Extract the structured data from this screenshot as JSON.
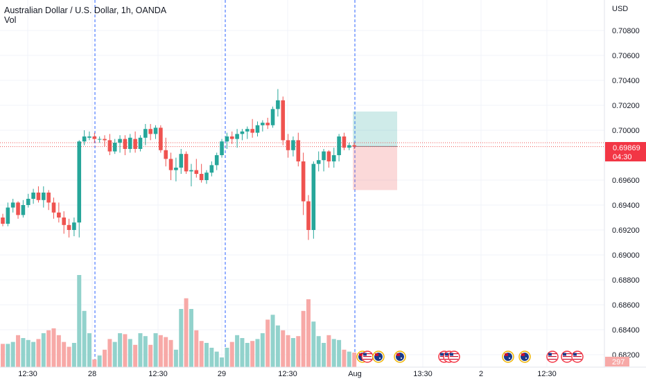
{
  "header": {
    "title": "Australian Dollar / U.S. Dollar, 1h, OANDA",
    "volume_label": "Vol"
  },
  "axis": {
    "currency": "USD",
    "price_ticks": [
      "0.70800",
      "0.70600",
      "0.70400",
      "0.70200",
      "0.70000",
      "0.69600",
      "0.69400",
      "0.69200",
      "0.69000",
      "0.68800",
      "0.68600",
      "0.68400",
      "0.68200"
    ],
    "time_ticks": [
      "12:30",
      "28",
      "12:30",
      "29",
      "12:30",
      "Aug",
      "13:30",
      "2",
      "12:30"
    ]
  },
  "price_label": {
    "value": "0.69869",
    "countdown": "04:30"
  },
  "volume_label_value": "297",
  "colors": {
    "up": "#26a69a",
    "down": "#ef5350",
    "up_vol": "#92d2cc",
    "down_vol": "#f7a9a7",
    "label_bg": "#f23645",
    "grid": "#f0f3fa",
    "divider": "#2962ff"
  },
  "chart_data": {
    "type": "candlestick",
    "ylim": [
      0.681,
      0.7095
    ],
    "candles": [
      [
        0.693,
        0.6933,
        0.6923,
        0.6925
      ],
      [
        0.6925,
        0.6942,
        0.6923,
        0.6938
      ],
      [
        0.6938,
        0.6945,
        0.6934,
        0.6942
      ],
      [
        0.6942,
        0.6943,
        0.6929,
        0.6932
      ],
      [
        0.6932,
        0.6944,
        0.693,
        0.694
      ],
      [
        0.694,
        0.6949,
        0.6938,
        0.6945
      ],
      [
        0.6945,
        0.6953,
        0.6941,
        0.695
      ],
      [
        0.695,
        0.6955,
        0.6942,
        0.6944
      ],
      [
        0.6944,
        0.6955,
        0.6938,
        0.695
      ],
      [
        0.695,
        0.6952,
        0.6936,
        0.6942
      ],
      [
        0.6942,
        0.6946,
        0.6929,
        0.6934
      ],
      [
        0.6934,
        0.6942,
        0.6926,
        0.693
      ],
      [
        0.693,
        0.6935,
        0.6917,
        0.6924
      ],
      [
        0.6924,
        0.6929,
        0.6914,
        0.692
      ],
      [
        0.692,
        0.693,
        0.6915,
        0.6926
      ],
      [
        0.6926,
        0.6992,
        0.6914,
        0.6991
      ],
      [
        0.6991,
        0.7,
        0.6988,
        0.6995
      ],
      [
        0.6994,
        0.6999,
        0.6992,
        0.6995
      ],
      [
        0.6995,
        0.6998,
        0.699,
        0.6993
      ],
      [
        0.6993,
        0.6995,
        0.699,
        0.6993
      ],
      [
        0.6993,
        0.6996,
        0.6987,
        0.6992
      ],
      [
        0.6992,
        0.6997,
        0.698,
        0.6983
      ],
      [
        0.6983,
        0.6993,
        0.6981,
        0.699
      ],
      [
        0.699,
        0.6996,
        0.6982,
        0.6993
      ],
      [
        0.6993,
        0.6996,
        0.698,
        0.6985
      ],
      [
        0.6985,
        0.6997,
        0.6982,
        0.6994
      ],
      [
        0.6993,
        0.6999,
        0.6982,
        0.6985
      ],
      [
        0.6985,
        0.6996,
        0.6983,
        0.6994
      ],
      [
        0.6994,
        0.7005,
        0.6988,
        0.7001
      ],
      [
        0.7001,
        0.7005,
        0.6992,
        0.6997
      ],
      [
        0.6997,
        0.7004,
        0.6993,
        0.7002
      ],
      [
        0.7002,
        0.7004,
        0.6982,
        0.6984
      ],
      [
        0.6984,
        0.6994,
        0.6971,
        0.6977
      ],
      [
        0.6977,
        0.6982,
        0.696,
        0.6968
      ],
      [
        0.6968,
        0.6978,
        0.6959,
        0.697
      ],
      [
        0.697,
        0.6985,
        0.6965,
        0.6981
      ],
      [
        0.6981,
        0.6983,
        0.6965,
        0.6967
      ],
      [
        0.6967,
        0.6973,
        0.6955,
        0.6968
      ],
      [
        0.6968,
        0.6977,
        0.6962,
        0.6965
      ],
      [
        0.6965,
        0.6973,
        0.6958,
        0.696
      ],
      [
        0.696,
        0.6968,
        0.6957,
        0.6966
      ],
      [
        0.6966,
        0.6975,
        0.6963,
        0.6972
      ],
      [
        0.6972,
        0.6982,
        0.6968,
        0.698
      ],
      [
        0.698,
        0.6993,
        0.6978,
        0.6991
      ],
      [
        0.6991,
        0.6998,
        0.6985,
        0.6995
      ],
      [
        0.6995,
        0.6999,
        0.6989,
        0.6993
      ],
      [
        0.6993,
        0.7001,
        0.6986,
        0.6997
      ],
      [
        0.6997,
        0.7001,
        0.6992,
        0.6999
      ],
      [
        0.6999,
        0.7003,
        0.6993,
        0.7001
      ],
      [
        0.7001,
        0.7009,
        0.6994,
        0.6998
      ],
      [
        0.6998,
        0.7007,
        0.6995,
        0.7004
      ],
      [
        0.7004,
        0.7008,
        0.6999,
        0.7006
      ],
      [
        0.7006,
        0.701,
        0.7001,
        0.7004
      ],
      [
        0.7004,
        0.7019,
        0.7002,
        0.7017
      ],
      [
        0.7017,
        0.7033,
        0.7011,
        0.7024
      ],
      [
        0.7024,
        0.7027,
        0.6988,
        0.6992
      ],
      [
        0.6992,
        0.6997,
        0.6978,
        0.6984
      ],
      [
        0.6984,
        0.6995,
        0.6979,
        0.6992
      ],
      [
        0.6992,
        0.6998,
        0.6971,
        0.6975
      ],
      [
        0.6975,
        0.6982,
        0.6932,
        0.6943
      ],
      [
        0.6943,
        0.6948,
        0.6912,
        0.692
      ],
      [
        0.692,
        0.6975,
        0.6913,
        0.6973
      ],
      [
        0.6973,
        0.6983,
        0.6967,
        0.6976
      ],
      [
        0.6976,
        0.6985,
        0.6967,
        0.6983
      ],
      [
        0.6983,
        0.6984,
        0.697,
        0.6975
      ],
      [
        0.6975,
        0.6986,
        0.697,
        0.698
      ],
      [
        0.698,
        0.6997,
        0.6975,
        0.6995
      ],
      [
        0.6995,
        0.6998,
        0.6984,
        0.6986
      ],
      [
        0.6986,
        0.699,
        0.6984,
        0.6988
      ],
      [
        0.6988,
        0.699,
        0.6985,
        0.6987
      ]
    ],
    "volumes": [
      24,
      24,
      26,
      33,
      30,
      28,
      26,
      29,
      35,
      38,
      40,
      33,
      26,
      21,
      25,
      95,
      58,
      35,
      8,
      12,
      18,
      29,
      26,
      35,
      34,
      29,
      23,
      35,
      32,
      23,
      35,
      33,
      31,
      28,
      18,
      60,
      71,
      60,
      38,
      27,
      25,
      20,
      16,
      10,
      20,
      26,
      33,
      30,
      25,
      27,
      29,
      35,
      49,
      54,
      43,
      38,
      33,
      30,
      32,
      58,
      70,
      47,
      32,
      25,
      33,
      29,
      28,
      18,
      16,
      15
    ],
    "position": {
      "entry": 0.6987,
      "target": 0.7015,
      "stop": 0.6952
    }
  }
}
